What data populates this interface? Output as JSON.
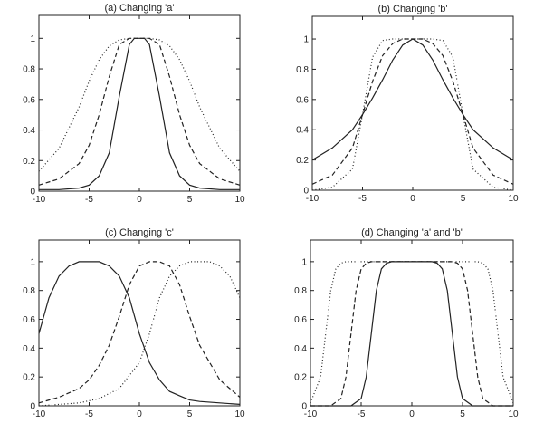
{
  "chart_data": [
    {
      "type": "line",
      "title": "(a) Changing 'a'",
      "xlim": [
        -10,
        10
      ],
      "ylim": [
        0,
        1.15
      ],
      "xticks": [
        "-10",
        "-5",
        "0",
        "5",
        "10"
      ],
      "yticks": [
        "0",
        "0.2",
        "0.4",
        "0.6",
        "0.8",
        "1"
      ],
      "grid": false,
      "series": [
        {
          "style": "solid",
          "x": [
            -10,
            -8,
            -6,
            -5,
            -4,
            -3,
            -2,
            -1,
            -0.5,
            0,
            0.5,
            1,
            2,
            3,
            4,
            5,
            6,
            8,
            10
          ],
          "y": [
            0.01,
            0.01,
            0.02,
            0.04,
            0.1,
            0.25,
            0.62,
            0.96,
            1.0,
            1.0,
            1.0,
            0.96,
            0.62,
            0.25,
            0.1,
            0.04,
            0.02,
            0.01,
            0.01
          ]
        },
        {
          "style": "dashed",
          "x": [
            -10,
            -8,
            -6,
            -5,
            -4,
            -3,
            -2,
            -1,
            0,
            1,
            2,
            3,
            4,
            5,
            6,
            8,
            10
          ],
          "y": [
            0.04,
            0.08,
            0.18,
            0.3,
            0.5,
            0.75,
            0.96,
            1.0,
            1.0,
            1.0,
            0.96,
            0.75,
            0.5,
            0.3,
            0.18,
            0.08,
            0.04
          ]
        },
        {
          "style": "dotted",
          "x": [
            -10,
            -8,
            -6,
            -5,
            -4,
            -3,
            -2,
            -1,
            0,
            1,
            2,
            3,
            4,
            5,
            6,
            8,
            10
          ],
          "y": [
            0.13,
            0.28,
            0.55,
            0.72,
            0.86,
            0.95,
            0.99,
            1.0,
            1.0,
            1.0,
            0.99,
            0.95,
            0.86,
            0.72,
            0.55,
            0.28,
            0.13
          ]
        }
      ]
    },
    {
      "type": "line",
      "title": "(b) Changing 'b'",
      "xlim": [
        -10,
        10
      ],
      "ylim": [
        0,
        1.15
      ],
      "xticks": [
        "-10",
        "-5",
        "0",
        "5",
        "10"
      ],
      "yticks": [
        "0",
        "0.2",
        "0.4",
        "0.6",
        "0.8",
        "1"
      ],
      "grid": false,
      "series": [
        {
          "style": "solid",
          "x": [
            -10,
            -8,
            -6,
            -5,
            -4,
            -3,
            -2,
            -1,
            0,
            1,
            2,
            3,
            4,
            5,
            6,
            8,
            10
          ],
          "y": [
            0.2,
            0.28,
            0.4,
            0.5,
            0.61,
            0.73,
            0.86,
            0.96,
            1.0,
            0.96,
            0.86,
            0.73,
            0.61,
            0.5,
            0.4,
            0.28,
            0.2
          ]
        },
        {
          "style": "dashed",
          "x": [
            -10,
            -8,
            -6,
            -5,
            -4,
            -3,
            -2,
            -1,
            0,
            1,
            2,
            3,
            4,
            5,
            6,
            8,
            10
          ],
          "y": [
            0.04,
            0.1,
            0.28,
            0.5,
            0.72,
            0.89,
            0.97,
            1.0,
            1.0,
            1.0,
            0.97,
            0.89,
            0.72,
            0.5,
            0.28,
            0.1,
            0.04
          ]
        },
        {
          "style": "dotted",
          "x": [
            -10,
            -8,
            -6,
            -5,
            -4,
            -3,
            -2,
            -1,
            0,
            1,
            2,
            3,
            4,
            5,
            6,
            8,
            10
          ],
          "y": [
            0.0,
            0.02,
            0.14,
            0.5,
            0.88,
            0.99,
            1.0,
            1.0,
            1.0,
            1.0,
            1.0,
            0.99,
            0.88,
            0.5,
            0.14,
            0.02,
            0.0
          ]
        }
      ]
    },
    {
      "type": "line",
      "title": "(c) Changing 'c'",
      "xlim": [
        -10,
        10
      ],
      "ylim": [
        0,
        1.15
      ],
      "xticks": [
        "-10",
        "-5",
        "0",
        "5",
        "10"
      ],
      "yticks": [
        "0",
        "0.2",
        "0.4",
        "0.6",
        "0.8",
        "1"
      ],
      "grid": false,
      "series": [
        {
          "style": "solid",
          "x": [
            -10,
            -9,
            -8,
            -7,
            -6,
            -5,
            -4,
            -3,
            -2,
            -1,
            0,
            1,
            2,
            3,
            4,
            5,
            6,
            8,
            10
          ],
          "y": [
            0.5,
            0.75,
            0.9,
            0.97,
            1.0,
            1.0,
            1.0,
            0.97,
            0.9,
            0.75,
            0.5,
            0.3,
            0.18,
            0.1,
            0.07,
            0.04,
            0.03,
            0.02,
            0.01
          ]
        },
        {
          "style": "dashed",
          "x": [
            -10,
            -8,
            -6,
            -5,
            -4,
            -3,
            -2,
            -1,
            0,
            1,
            2,
            3,
            4,
            5,
            6,
            8,
            10
          ],
          "y": [
            0.02,
            0.06,
            0.12,
            0.18,
            0.28,
            0.42,
            0.62,
            0.84,
            0.97,
            1.0,
            1.0,
            0.97,
            0.84,
            0.62,
            0.42,
            0.18,
            0.06
          ]
        },
        {
          "style": "dotted",
          "x": [
            -10,
            -8,
            -6,
            -4,
            -2,
            0,
            1,
            2,
            3,
            4,
            5,
            6,
            7,
            8,
            9,
            10
          ],
          "y": [
            0.0,
            0.01,
            0.02,
            0.05,
            0.12,
            0.3,
            0.5,
            0.75,
            0.9,
            0.97,
            1.0,
            1.0,
            1.0,
            0.97,
            0.9,
            0.75
          ]
        }
      ]
    },
    {
      "type": "line",
      "title": "(d) Changing 'a' and 'b'",
      "xlim": [
        -10,
        10
      ],
      "ylim": [
        0,
        1.15
      ],
      "xticks": [
        "-10",
        "-5",
        "0",
        "5",
        "10"
      ],
      "yticks": [
        "0",
        "0.2",
        "0.4",
        "0.6",
        "0.8",
        "1"
      ],
      "grid": false,
      "series": [
        {
          "style": "solid",
          "x": [
            -10,
            -6,
            -5,
            -4.5,
            -4,
            -3.5,
            -3,
            -2.5,
            -2,
            0,
            2,
            2.5,
            3,
            3.5,
            4,
            4.5,
            5,
            6,
            10
          ],
          "y": [
            0.0,
            0.0,
            0.05,
            0.2,
            0.5,
            0.8,
            0.95,
            0.99,
            1.0,
            1.0,
            1.0,
            0.99,
            0.95,
            0.8,
            0.5,
            0.2,
            0.05,
            0.0,
            0.0
          ]
        },
        {
          "style": "dashed",
          "x": [
            -10,
            -8,
            -7,
            -6.5,
            -6,
            -5.5,
            -5,
            -4.5,
            -4,
            0,
            4,
            4.5,
            5,
            5.5,
            6,
            6.5,
            7,
            8,
            10
          ],
          "y": [
            0.0,
            0.0,
            0.05,
            0.2,
            0.5,
            0.8,
            0.95,
            0.99,
            1.0,
            1.0,
            1.0,
            0.99,
            0.95,
            0.8,
            0.5,
            0.2,
            0.05,
            0.0,
            0.0
          ]
        },
        {
          "style": "dotted",
          "x": [
            -10,
            -9,
            -8.5,
            -8,
            -7.5,
            -7,
            -6.5,
            -6,
            0,
            6,
            6.5,
            7,
            7.5,
            8,
            8.5,
            9,
            10
          ],
          "y": [
            0.02,
            0.2,
            0.5,
            0.8,
            0.95,
            0.99,
            1.0,
            1.0,
            1.0,
            1.0,
            1.0,
            0.99,
            0.95,
            0.8,
            0.5,
            0.2,
            0.02
          ]
        }
      ]
    }
  ]
}
